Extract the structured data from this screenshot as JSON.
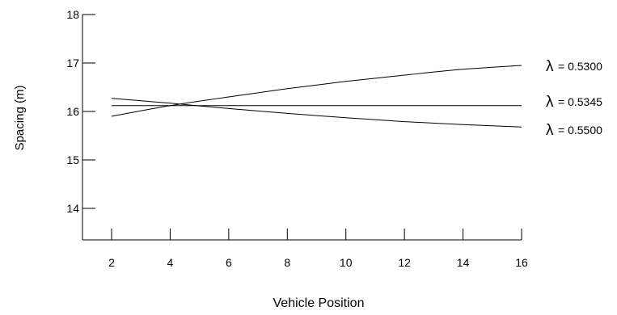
{
  "chart_data": {
    "type": "line",
    "title": "",
    "xlabel": "Vehicle Position",
    "ylabel": "Spacing (m)",
    "xlim": [
      1,
      16
    ],
    "ylim": [
      13.5,
      18
    ],
    "xticks": [
      2,
      4,
      6,
      8,
      10,
      12,
      14,
      16
    ],
    "yticks": [
      14,
      15,
      16,
      17,
      18
    ],
    "grid": false,
    "legend": "inline labels at right end of each line",
    "line_color": "#000000",
    "x": [
      2,
      4,
      6,
      8,
      10,
      12,
      14,
      16
    ],
    "series": [
      {
        "name": "λ = 0.5300",
        "symbol": "λ",
        "value_text": "= 0.5300",
        "values": [
          15.9,
          16.12,
          16.3,
          16.47,
          16.62,
          16.75,
          16.87,
          16.95
        ]
      },
      {
        "name": "λ = 0.5345",
        "symbol": "λ",
        "value_text": "= 0.5345",
        "values": [
          16.12,
          16.12,
          16.12,
          16.12,
          16.12,
          16.12,
          16.12,
          16.12
        ]
      },
      {
        "name": "λ = 0.5500",
        "symbol": "λ",
        "value_text": "= 0.5500",
        "values": [
          16.27,
          16.17,
          16.06,
          15.96,
          15.87,
          15.79,
          15.73,
          15.68
        ]
      }
    ]
  }
}
